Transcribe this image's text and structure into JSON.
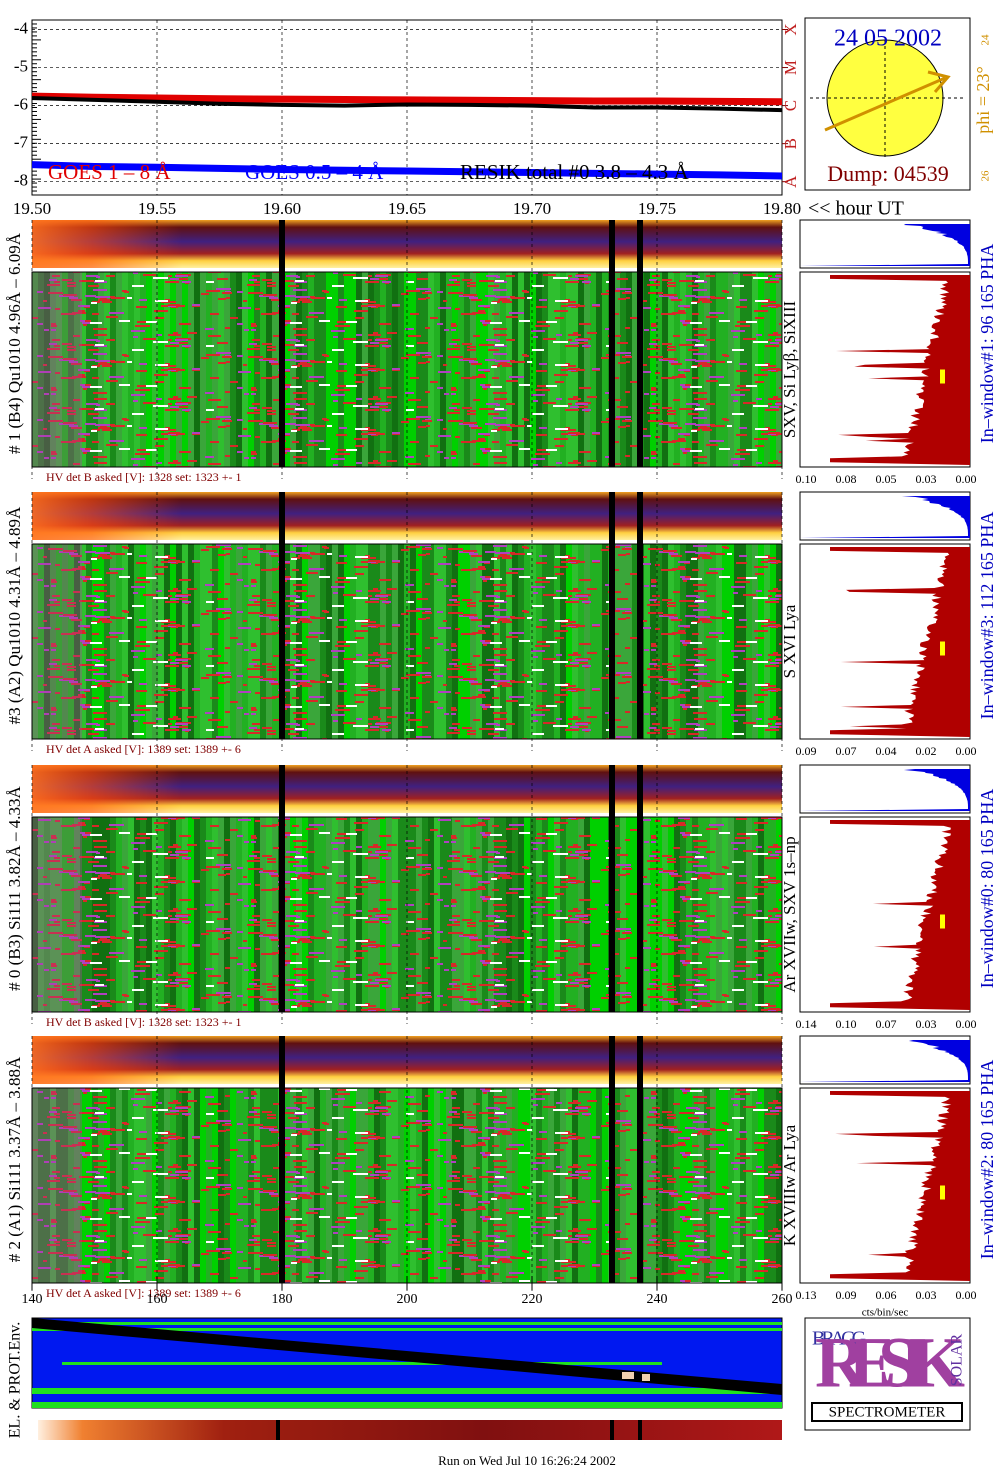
{
  "chart_data": {
    "type": "line",
    "x": [
      19.5,
      19.525,
      19.55,
      19.575,
      19.6,
      19.625,
      19.65,
      19.675,
      19.7,
      19.725,
      19.75,
      19.775,
      19.8
    ],
    "series": [
      {
        "name": "GOES 1 – 8 Å",
        "color": "#e00000",
        "values": [
          -5.75,
          -5.78,
          -5.8,
          -5.82,
          -5.83,
          -5.84,
          -5.85,
          -5.86,
          -5.87,
          -5.88,
          -5.88,
          -5.89,
          -5.9
        ]
      },
      {
        "name": "GOES 0.5 – 4 Å",
        "color": "#0000ff",
        "values": [
          -7.55,
          -7.6,
          -7.62,
          -7.65,
          -7.68,
          -7.7,
          -7.72,
          -7.74,
          -7.76,
          -7.78,
          -7.8,
          -7.82,
          -7.85
        ]
      },
      {
        "name": "RESIK total #0  3.8 – 4.3 Å",
        "color": "#000000",
        "values": [
          -5.8,
          -5.85,
          -5.9,
          -5.95,
          -5.98,
          -6.0,
          -5.97,
          -5.98,
          -6.0,
          -6.05,
          -6.05,
          -6.08,
          -6.12
        ]
      }
    ],
    "xlim": [
      19.5,
      19.8
    ],
    "xticks": [
      {
        "value": 19.5,
        "label": "19.50"
      },
      19.55,
      {
        "value": 19.6,
        "label": "19.60"
      },
      19.65,
      {
        "value": 19.7,
        "label": "19.70"
      },
      19.75,
      {
        "value": 19.8,
        "label": "19.80"
      }
    ],
    "x_label": "<< hour UT",
    "ylim": [
      -8.35,
      -3.75
    ],
    "yticks": [
      -8,
      -7,
      -6,
      -5,
      -4
    ],
    "y2lim": [
      -8.35,
      -3.75
    ],
    "y2ticks": [
      {
        "value": -8,
        "label": "A"
      },
      {
        "value": -7,
        "label": "B"
      },
      {
        "value": -6,
        "label": "C"
      },
      {
        "value": -5,
        "label": "M"
      },
      {
        "value": -4,
        "label": "X"
      }
    ],
    "grid": true
  },
  "sun": {
    "date": "24 05 2002",
    "phi": "phi = 23°",
    "scale_top": "24",
    "scale_bottom": "26",
    "dump": "Dump: 04539"
  },
  "panels": [
    {
      "detector": "# 1 (B4) Qu1010 4.96Å – 6.09Å",
      "lines": "SXV, Si Lyβ, SiXIII",
      "hv": "HV det B asked [V]:  1328 set:  1323  +-    1",
      "hist_ticks": [
        "0.10",
        "0.08",
        "0.05",
        "0.03",
        "0.00"
      ],
      "window": "In–window#1:   96 165  PHA"
    },
    {
      "detector": "#3 (A2) Qu1010  4.31Å – 4.89Å",
      "lines": "S XVI Lya",
      "hv": "HV det A asked [V]:  1389 set:  1389  +-    6",
      "hist_ticks": [
        "0.09",
        "0.07",
        "0.04",
        "0.02",
        "0.00"
      ],
      "window": "In–window#3:   112 165  PHA"
    },
    {
      "detector": "# 0 (B3) Si111  3.82Å – 4.33Å",
      "lines": "Ar XVIIw, SXV 1s–np",
      "hv": "HV det B asked [V]:  1328 set:  1323  +-    1",
      "hist_ticks": [
        "0.14",
        "0.10",
        "0.07",
        "0.03",
        "0.00"
      ],
      "window": "In–window#0:   80 165  PHA"
    },
    {
      "detector": "# 2 (A1) Si111  3.37Å – 3.88Å",
      "lines": "K XVIIIw  Ar Lya",
      "hv": "HV det A asked [V]:  1389 set:  1389  +-    6",
      "hist_ticks": [
        "0.13",
        "0.09",
        "0.06",
        "0.03",
        "0.00"
      ],
      "window": "In–window#2:   80 165  PHA"
    }
  ],
  "bottom_axis": [
    "140",
    "160",
    "180",
    "200",
    "220",
    "240",
    "260"
  ],
  "hist_unit": "cts/bin/sec",
  "env_label": "EL. & PROT.Env.",
  "logo": {
    "top": "BRAGG",
    "main": "RESIK",
    "side": "SOLAR",
    "bottom": "SPECTROMETER"
  },
  "footer": "Run on Wed Jul 10 16:26:24 2002"
}
